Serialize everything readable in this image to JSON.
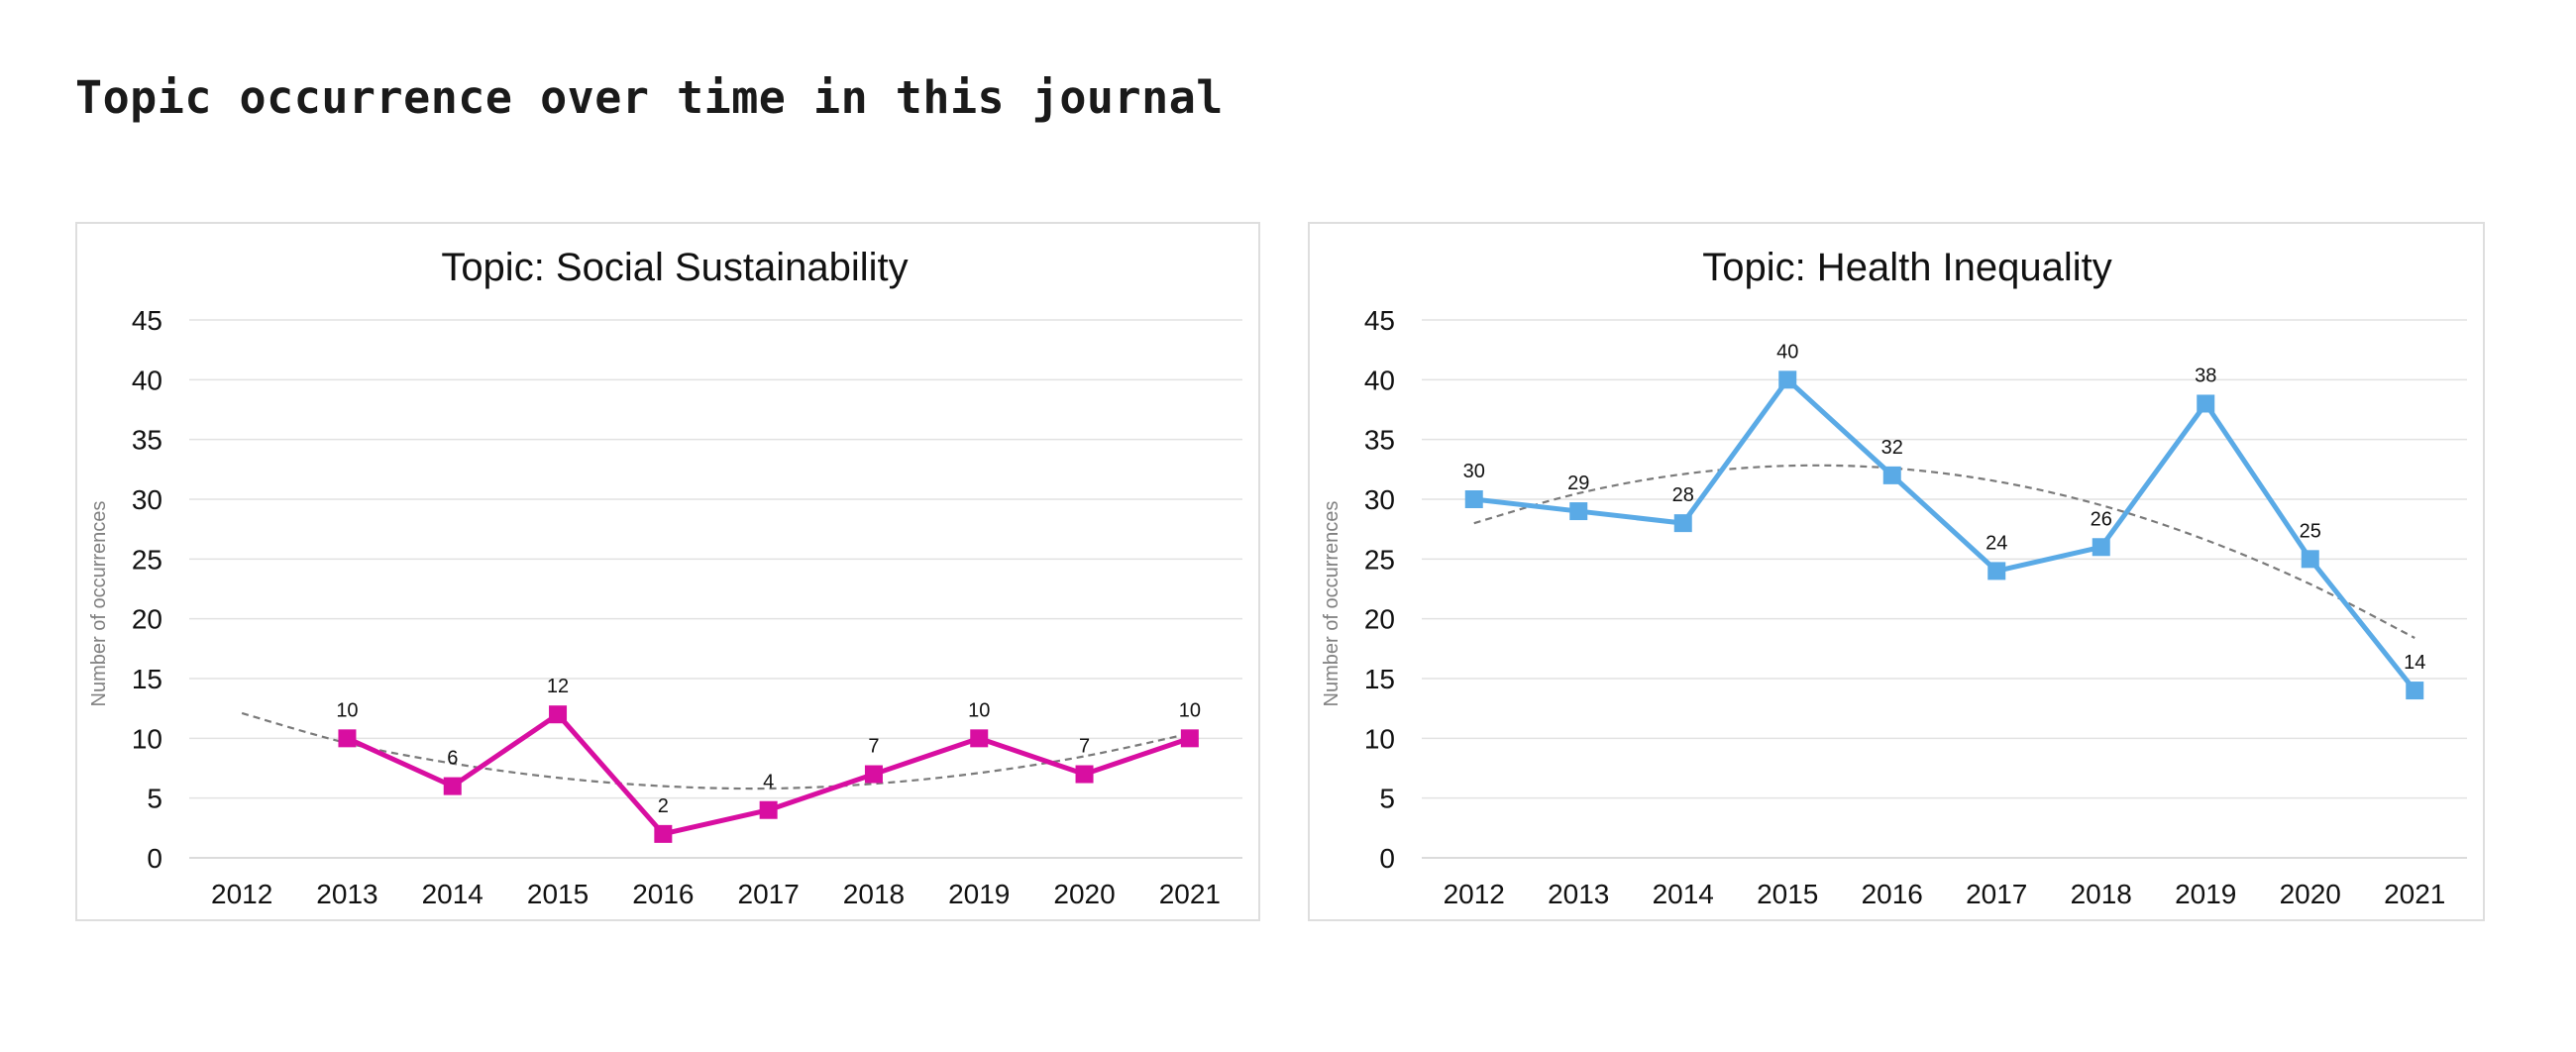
{
  "page": {
    "title": "Topic occurrence over time in this journal"
  },
  "chart_data": [
    {
      "type": "line",
      "title": "Topic: Social Sustainability",
      "xlabel": "",
      "ylabel": "Number of occurrences",
      "categories": [
        "2012",
        "2013",
        "2014",
        "2015",
        "2016",
        "2017",
        "2018",
        "2019",
        "2020",
        "2021"
      ],
      "series": [
        {
          "color": "#d80ea1",
          "marker": "square",
          "values": [
            null,
            10,
            6,
            12,
            2,
            4,
            7,
            10,
            7,
            10
          ]
        }
      ],
      "trendline": {
        "style": "dashed",
        "color": "#7a7a7a",
        "values": [
          12.1,
          9.6,
          7.9,
          6.7,
          6.0,
          5.8,
          6.2,
          7.1,
          8.5,
          10.4
        ]
      },
      "ylim": [
        0,
        45
      ],
      "yticks": [
        0,
        5,
        10,
        15,
        20,
        25,
        30,
        35,
        40,
        45
      ],
      "grid": true,
      "legend": "none"
    },
    {
      "type": "line",
      "title": "Topic: Health Inequality",
      "xlabel": "",
      "ylabel": "Number of occurrences",
      "categories": [
        "2012",
        "2013",
        "2014",
        "2015",
        "2016",
        "2017",
        "2018",
        "2019",
        "2020",
        "2021"
      ],
      "series": [
        {
          "color": "#5aaae6",
          "marker": "square",
          "values": [
            30,
            29,
            28,
            40,
            32,
            24,
            26,
            38,
            25,
            14
          ]
        }
      ],
      "trendline": {
        "style": "dashed",
        "color": "#7a7a7a",
        "values": [
          28.0,
          30.5,
          32.1,
          32.8,
          32.6,
          31.5,
          29.5,
          26.6,
          22.9,
          18.4
        ]
      },
      "ylim": [
        0,
        45
      ],
      "yticks": [
        0,
        5,
        10,
        15,
        20,
        25,
        30,
        35,
        40,
        45
      ],
      "grid": true,
      "legend": "none"
    }
  ]
}
